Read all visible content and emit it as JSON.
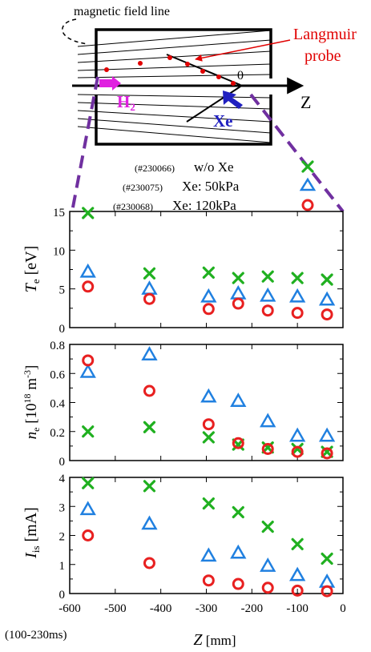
{
  "schematic": {
    "field_line_label": "magnetic  field line",
    "probe_label_line1": "Langmuir",
    "probe_label_line2": "probe",
    "origin_label": "0",
    "axis_label": "Z",
    "h2_label": "H",
    "h2_sub": "2",
    "xe_label": "Xe",
    "colors": {
      "h2": "#e020e0",
      "xe": "#2020c0",
      "probe": "#e00000",
      "dashed": "#7030a0"
    }
  },
  "legend": [
    {
      "shot": "(#230066)",
      "label": "w/o Xe",
      "marker": "cross",
      "color": "#20b020"
    },
    {
      "shot": "(#230075)",
      "label": "Xe: 50kPa",
      "marker": "triangle",
      "color": "#2080e0"
    },
    {
      "shot": "(#230068)",
      "label": "Xe: 120kPa",
      "marker": "circle",
      "color": "#e82020"
    }
  ],
  "time_window": "(100-230ms)",
  "xlabel": {
    "main": "Z",
    "unit": " [mm]"
  },
  "chart_data": [
    {
      "type": "scatter",
      "ylabel": {
        "sym": "T",
        "sub": "e",
        "unit": " [eV]"
      },
      "xlim": [
        -600,
        0
      ],
      "ylim": [
        0,
        15
      ],
      "yticks": [
        0,
        5,
        10,
        15
      ],
      "xticks": [
        -600,
        -500,
        -400,
        -300,
        -200,
        -100,
        0
      ],
      "show_xticklabels": false,
      "x": [
        -560,
        -425,
        -295,
        -230,
        -165,
        -100,
        -35
      ],
      "series": [
        {
          "name": "w/o Xe",
          "values": [
            14.8,
            7.0,
            7.1,
            6.4,
            6.6,
            6.4,
            6.2
          ]
        },
        {
          "name": "Xe: 50kPa",
          "values": [
            7.2,
            5.0,
            4.0,
            4.4,
            4.1,
            4.0,
            3.6
          ]
        },
        {
          "name": "Xe: 120kPa",
          "values": [
            5.3,
            3.7,
            2.4,
            3.1,
            2.2,
            1.9,
            1.7
          ]
        }
      ]
    },
    {
      "type": "scatter",
      "ylabel": {
        "sym": "n",
        "sub": "e",
        "unit": " [10",
        "sup": "18",
        "unit2": " m",
        "sup2": "-3",
        "unit3": "]"
      },
      "xlim": [
        -600,
        0
      ],
      "ylim": [
        0,
        0.8
      ],
      "yticks": [
        0,
        0.2,
        0.4,
        0.6,
        0.8
      ],
      "xticks": [
        -600,
        -500,
        -400,
        -300,
        -200,
        -100,
        0
      ],
      "show_xticklabels": false,
      "x": [
        -560,
        -425,
        -295,
        -230,
        -165,
        -100,
        -35
      ],
      "series": [
        {
          "name": "w/o Xe",
          "values": [
            0.2,
            0.23,
            0.16,
            0.11,
            0.09,
            0.08,
            0.06
          ]
        },
        {
          "name": "Xe: 50kPa",
          "values": [
            0.61,
            0.73,
            0.44,
            0.41,
            0.27,
            0.17,
            0.17
          ]
        },
        {
          "name": "Xe: 120kPa",
          "values": [
            0.69,
            0.48,
            0.25,
            0.12,
            0.08,
            0.06,
            0.05
          ]
        }
      ]
    },
    {
      "type": "scatter",
      "ylabel": {
        "sym": "I",
        "sub": "is",
        "unit": " [mA]"
      },
      "xlim": [
        -600,
        0
      ],
      "ylim": [
        0,
        4
      ],
      "yticks": [
        0,
        1,
        2,
        3,
        4
      ],
      "xticks": [
        -600,
        -500,
        -400,
        -300,
        -200,
        -100,
        0
      ],
      "show_xticklabels": true,
      "x": [
        -560,
        -425,
        -295,
        -230,
        -165,
        -100,
        -35
      ],
      "series": [
        {
          "name": "w/o Xe",
          "values": [
            3.8,
            3.7,
            3.1,
            2.8,
            2.3,
            1.7,
            1.2
          ]
        },
        {
          "name": "Xe: 50kPa",
          "values": [
            2.9,
            2.4,
            1.3,
            1.4,
            0.95,
            0.63,
            0.4
          ]
        },
        {
          "name": "Xe: 120kPa",
          "values": [
            2.0,
            1.05,
            0.45,
            0.33,
            0.2,
            0.1,
            0.08
          ]
        }
      ]
    }
  ]
}
